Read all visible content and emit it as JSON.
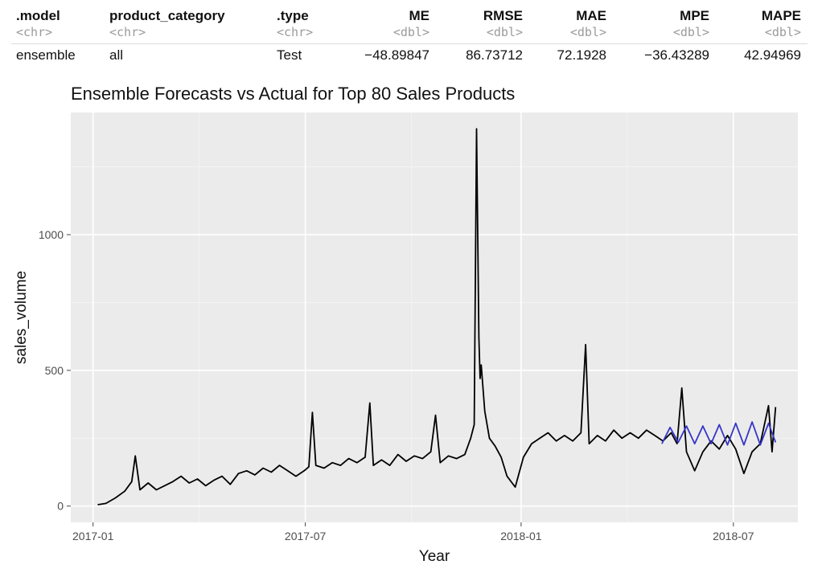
{
  "metrics_table": {
    "columns": [
      {
        "name": ".model",
        "type": "<chr>"
      },
      {
        "name": "product_category",
        "type": "<chr>"
      },
      {
        "name": ".type",
        "type": "<chr>"
      },
      {
        "name": "ME",
        "type": "<dbl>"
      },
      {
        "name": "RMSE",
        "type": "<dbl>"
      },
      {
        "name": "MAE",
        "type": "<dbl>"
      },
      {
        "name": "MPE",
        "type": "<dbl>"
      },
      {
        "name": "MAPE",
        "type": "<dbl>"
      }
    ],
    "rows": [
      [
        "ensemble",
        "all",
        "Test",
        "−48.89847",
        "86.73712",
        "72.1928",
        "−36.43289",
        "42.94969"
      ]
    ]
  },
  "chart_data": {
    "type": "line",
    "title": "Ensemble Forecasts vs Actual for Top 80 Sales Products",
    "xlabel": "Year",
    "ylabel": "sales_volume",
    "xlim": [
      "2016-12-13",
      "2018-08-25"
    ],
    "ylim": [
      -60,
      1450
    ],
    "x_ticks": [
      {
        "date": "2017-01-01",
        "label": "2017-01"
      },
      {
        "date": "2017-07-01",
        "label": "2017-07"
      },
      {
        "date": "2018-01-01",
        "label": "2018-01"
      },
      {
        "date": "2018-07-01",
        "label": "2018-07"
      }
    ],
    "y_ticks": [
      0,
      500,
      1000
    ],
    "grid": true,
    "background": "#ebebeb",
    "series": [
      {
        "color": "#000000",
        "points": [
          [
            "2017-01-05",
            5
          ],
          [
            "2017-01-12",
            10
          ],
          [
            "2017-01-20",
            30
          ],
          [
            "2017-01-28",
            55
          ],
          [
            "2017-02-03",
            90
          ],
          [
            "2017-02-06",
            185
          ],
          [
            "2017-02-10",
            60
          ],
          [
            "2017-02-17",
            85
          ],
          [
            "2017-02-24",
            60
          ],
          [
            "2017-03-03",
            75
          ],
          [
            "2017-03-10",
            90
          ],
          [
            "2017-03-17",
            110
          ],
          [
            "2017-03-24",
            85
          ],
          [
            "2017-03-31",
            100
          ],
          [
            "2017-04-07",
            75
          ],
          [
            "2017-04-14",
            95
          ],
          [
            "2017-04-21",
            110
          ],
          [
            "2017-04-28",
            80
          ],
          [
            "2017-05-05",
            120
          ],
          [
            "2017-05-12",
            130
          ],
          [
            "2017-05-19",
            115
          ],
          [
            "2017-05-26",
            140
          ],
          [
            "2017-06-02",
            125
          ],
          [
            "2017-06-09",
            150
          ],
          [
            "2017-06-16",
            130
          ],
          [
            "2017-06-23",
            110
          ],
          [
            "2017-06-30",
            130
          ],
          [
            "2017-07-04",
            145
          ],
          [
            "2017-07-07",
            345
          ],
          [
            "2017-07-10",
            150
          ],
          [
            "2017-07-17",
            140
          ],
          [
            "2017-07-24",
            160
          ],
          [
            "2017-07-31",
            150
          ],
          [
            "2017-08-07",
            175
          ],
          [
            "2017-08-14",
            160
          ],
          [
            "2017-08-21",
            180
          ],
          [
            "2017-08-25",
            380
          ],
          [
            "2017-08-28",
            150
          ],
          [
            "2017-09-04",
            170
          ],
          [
            "2017-09-11",
            150
          ],
          [
            "2017-09-18",
            190
          ],
          [
            "2017-09-25",
            165
          ],
          [
            "2017-10-02",
            185
          ],
          [
            "2017-10-09",
            175
          ],
          [
            "2017-10-16",
            200
          ],
          [
            "2017-10-20",
            335
          ],
          [
            "2017-10-24",
            160
          ],
          [
            "2017-10-31",
            185
          ],
          [
            "2017-11-07",
            175
          ],
          [
            "2017-11-14",
            190
          ],
          [
            "2017-11-19",
            250
          ],
          [
            "2017-11-22",
            300
          ],
          [
            "2017-11-24",
            1390
          ],
          [
            "2017-11-26",
            620
          ],
          [
            "2017-11-27",
            470
          ],
          [
            "2017-11-28",
            520
          ],
          [
            "2017-12-01",
            350
          ],
          [
            "2017-12-05",
            250
          ],
          [
            "2017-12-10",
            220
          ],
          [
            "2017-12-15",
            180
          ],
          [
            "2017-12-20",
            110
          ],
          [
            "2017-12-27",
            70
          ],
          [
            "2018-01-03",
            180
          ],
          [
            "2018-01-10",
            230
          ],
          [
            "2018-01-17",
            250
          ],
          [
            "2018-01-24",
            270
          ],
          [
            "2018-01-31",
            240
          ],
          [
            "2018-02-07",
            260
          ],
          [
            "2018-02-14",
            240
          ],
          [
            "2018-02-21",
            270
          ],
          [
            "2018-02-25",
            595
          ],
          [
            "2018-02-28",
            230
          ],
          [
            "2018-03-07",
            260
          ],
          [
            "2018-03-14",
            240
          ],
          [
            "2018-03-21",
            280
          ],
          [
            "2018-03-28",
            250
          ],
          [
            "2018-04-04",
            270
          ],
          [
            "2018-04-11",
            250
          ],
          [
            "2018-04-18",
            280
          ],
          [
            "2018-04-25",
            260
          ],
          [
            "2018-05-02",
            240
          ],
          [
            "2018-05-09",
            270
          ],
          [
            "2018-05-14",
            230
          ],
          [
            "2018-05-18",
            435
          ],
          [
            "2018-05-22",
            200
          ],
          [
            "2018-05-29",
            130
          ],
          [
            "2018-06-05",
            200
          ],
          [
            "2018-06-12",
            240
          ],
          [
            "2018-06-19",
            210
          ],
          [
            "2018-06-26",
            260
          ],
          [
            "2018-07-03",
            210
          ],
          [
            "2018-07-10",
            120
          ],
          [
            "2018-07-17",
            200
          ],
          [
            "2018-07-24",
            230
          ],
          [
            "2018-07-31",
            370
          ],
          [
            "2018-08-03",
            200
          ],
          [
            "2018-08-06",
            365
          ]
        ]
      },
      {
        "color": "#3535c8",
        "points": [
          [
            "2018-05-01",
            230
          ],
          [
            "2018-05-08",
            290
          ],
          [
            "2018-05-15",
            235
          ],
          [
            "2018-05-22",
            295
          ],
          [
            "2018-05-29",
            230
          ],
          [
            "2018-06-05",
            295
          ],
          [
            "2018-06-12",
            230
          ],
          [
            "2018-06-19",
            300
          ],
          [
            "2018-06-26",
            225
          ],
          [
            "2018-07-03",
            305
          ],
          [
            "2018-07-10",
            225
          ],
          [
            "2018-07-17",
            310
          ],
          [
            "2018-07-24",
            225
          ],
          [
            "2018-07-31",
            305
          ],
          [
            "2018-08-06",
            235
          ]
        ]
      }
    ]
  }
}
